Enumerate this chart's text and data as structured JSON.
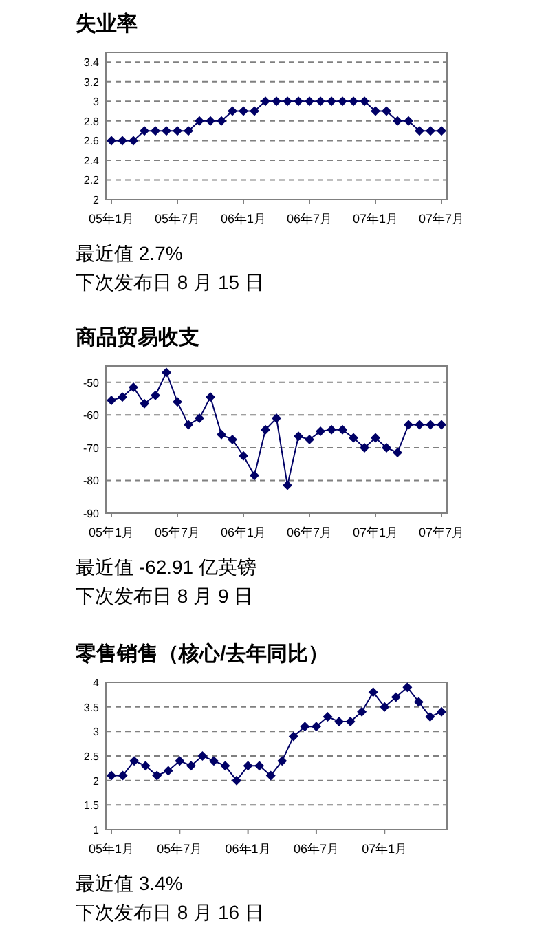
{
  "chart_data": [
    {
      "type": "line",
      "title": "失业率",
      "categories": [
        "05年1月",
        null,
        null,
        null,
        null,
        null,
        "05年7月",
        null,
        null,
        null,
        null,
        null,
        "06年1月",
        null,
        null,
        null,
        null,
        null,
        "06年7月",
        null,
        null,
        null,
        null,
        null,
        "07年1月",
        null,
        null,
        null,
        null,
        null,
        "07年7月"
      ],
      "series": [
        {
          "color": "#000066",
          "values": [
            2.6,
            2.6,
            2.6,
            2.7,
            2.7,
            2.7,
            2.7,
            2.7,
            2.8,
            2.8,
            2.8,
            2.9,
            2.9,
            2.9,
            3.0,
            3.0,
            3.0,
            3.0,
            3.0,
            3.0,
            3.0,
            3.0,
            3.0,
            3.0,
            2.9,
            2.9,
            2.8,
            2.8,
            2.7,
            2.7,
            2.7
          ]
        }
      ],
      "ylim": [
        2,
        3.5
      ],
      "yticks": [
        2,
        2.2,
        2.4,
        2.6,
        2.8,
        3,
        3.2,
        3.4
      ],
      "grid": "y",
      "marker": "diamond",
      "annotations": [
        "最近值 2.7%",
        "下次发布日 8 月 15 日"
      ]
    },
    {
      "type": "line",
      "title": "商品贸易收支",
      "categories": [
        "05年1月",
        null,
        null,
        null,
        null,
        null,
        "05年7月",
        null,
        null,
        null,
        null,
        null,
        "06年1月",
        null,
        null,
        null,
        null,
        null,
        "06年7月",
        null,
        null,
        null,
        null,
        null,
        "07年1月",
        null,
        null,
        null,
        null,
        null,
        "07年7月"
      ],
      "series": [
        {
          "color": "#000066",
          "values": [
            -55.5,
            -54.5,
            -51.5,
            -56.5,
            -54,
            -47,
            -56,
            -63,
            -61,
            -54.5,
            -66,
            -67.5,
            -72.5,
            -78.5,
            -64.5,
            -61,
            -81.5,
            -66.5,
            -67.5,
            -65,
            -64.5,
            -64.5,
            -67,
            -70,
            -67,
            -70,
            -71.5,
            -63,
            -63,
            -63,
            -63
          ]
        }
      ],
      "ylim": [
        -90,
        -45
      ],
      "yticks": [
        -90,
        -80,
        -70,
        -60,
        -50
      ],
      "grid": "y",
      "marker": "diamond",
      "annotations": [
        "最近值 -62.91 亿英镑",
        "下次发布日 8 月 9 日"
      ]
    },
    {
      "type": "line",
      "title": "零售销售（核心/去年同比）",
      "categories": [
        "05年1月",
        null,
        null,
        null,
        null,
        null,
        "05年7月",
        null,
        null,
        null,
        null,
        null,
        "06年1月",
        null,
        null,
        null,
        null,
        null,
        "06年7月",
        null,
        null,
        null,
        null,
        null,
        "07年1月",
        null,
        null,
        null,
        null,
        null
      ],
      "series": [
        {
          "color": "#000066",
          "values": [
            2.1,
            2.1,
            2.4,
            2.3,
            2.1,
            2.2,
            2.4,
            2.3,
            2.5,
            2.4,
            2.3,
            2.0,
            2.3,
            2.3,
            2.1,
            2.4,
            2.9,
            3.1,
            3.1,
            3.3,
            3.2,
            3.2,
            3.4,
            3.8,
            3.5,
            3.7,
            3.9,
            3.6,
            3.3,
            3.4
          ]
        }
      ],
      "ylim": [
        1,
        4
      ],
      "yticks": [
        1,
        1.5,
        2,
        2.5,
        3,
        3.5,
        4
      ],
      "grid": "y",
      "marker": "diamond",
      "annotations": [
        "最近值 3.4%",
        "下次发布日 8 月 16 日"
      ]
    }
  ]
}
